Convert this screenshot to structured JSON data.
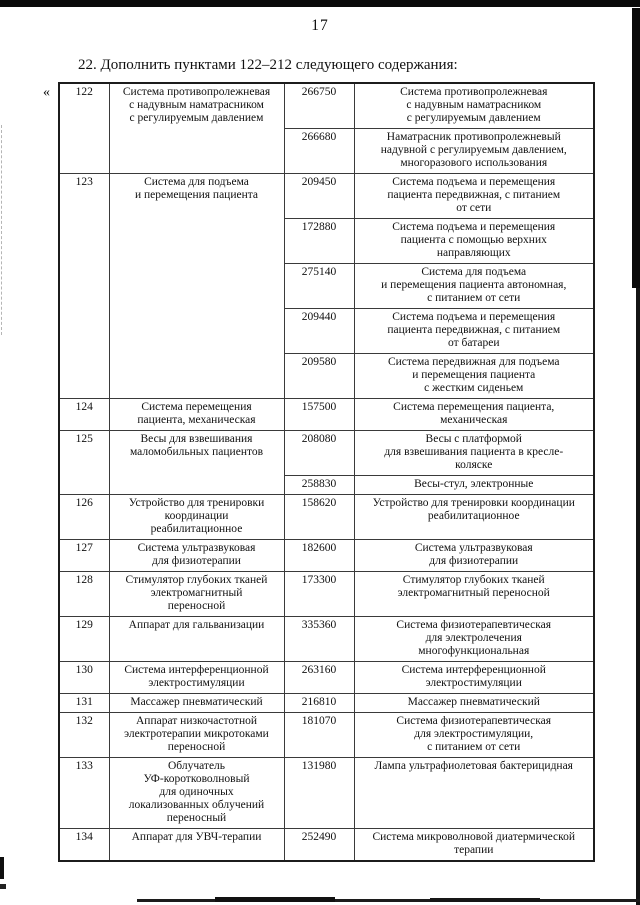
{
  "page": {
    "number": "17",
    "heading": "22. Дополнить пунктами 122–212 следующего содержания:",
    "open_quote": "«"
  },
  "table": {
    "rows": [
      {
        "num": "122",
        "name": "Система противопролежневая\nс надувным наматрасником\nс регулируемым давлением",
        "entries": [
          {
            "code": "266750",
            "desc": "Система противопролежневая\nс надувным наматрасником\nс регулируемым давлением"
          },
          {
            "code": "266680",
            "desc": "Наматрасник противопролежневый\nнадувной с регулируемым давлением,\nмногоразового использования"
          }
        ]
      },
      {
        "num": "123",
        "name": "Система для подъема\nи перемещения пациента",
        "entries": [
          {
            "code": "209450",
            "desc": "Система подъема и перемещения\nпациента передвижная, с питанием\nот сети"
          },
          {
            "code": "172880",
            "desc": "Система подъема и перемещения\nпациента с помощью верхних\nнаправляющих"
          },
          {
            "code": "275140",
            "desc": "Система для подъема\nи перемещения пациента автономная,\nс питанием от сети"
          },
          {
            "code": "209440",
            "desc": "Система подъема и перемещения\nпациента передвижная, с питанием\nот батареи"
          },
          {
            "code": "209580",
            "desc": "Система передвижная для подъема\nи перемещения пациента\nс жестким сиденьем"
          }
        ]
      },
      {
        "num": "124",
        "name": "Система перемещения\nпациента, механическая",
        "entries": [
          {
            "code": "157500",
            "desc": "Система перемещения пациента,\nмеханическая"
          }
        ]
      },
      {
        "num": "125",
        "name": "Весы для взвешивания\nмаломобильных пациентов",
        "entries": [
          {
            "code": "208080",
            "desc": "Весы с платформой\nдля взвешивания пациента в кресле-\nколяске"
          },
          {
            "code": "258830",
            "desc": "Весы-стул, электронные"
          }
        ]
      },
      {
        "num": "126",
        "name": "Устройство для тренировки\nкоординации\nреабилитационное",
        "entries": [
          {
            "code": "158620",
            "desc": "Устройство для тренировки координации\nреабилитационное"
          }
        ]
      },
      {
        "num": "127",
        "name": "Система ультразвуковая\nдля физиотерапии",
        "entries": [
          {
            "code": "182600",
            "desc": "Система ультразвуковая\nдля физиотерапии"
          }
        ]
      },
      {
        "num": "128",
        "name": "Стимулятор глубоких тканей\nэлектромагнитный\nпереносной",
        "entries": [
          {
            "code": "173300",
            "desc": "Стимулятор глубоких тканей\nэлектромагнитный переносной"
          }
        ]
      },
      {
        "num": "129",
        "name": "Аппарат для гальванизации",
        "entries": [
          {
            "code": "335360",
            "desc": "Система физиотерапевтическая\nдля электролечения\nмногофункциональная"
          }
        ]
      },
      {
        "num": "130",
        "name": "Система интерференционной\nэлектростимуляции",
        "entries": [
          {
            "code": "263160",
            "desc": "Система интерференционной\nэлектростимуляции"
          }
        ]
      },
      {
        "num": "131",
        "name": "Массажер пневматический",
        "entries": [
          {
            "code": "216810",
            "desc": "Массажер пневматический"
          }
        ]
      },
      {
        "num": "132",
        "name": "Аппарат низкочастотной\nэлектротерапии микротоками\nпереносной",
        "entries": [
          {
            "code": "181070",
            "desc": "Система физиотерапевтическая\nдля электростимуляции,\nс питанием от сети"
          }
        ]
      },
      {
        "num": "133",
        "name": "Облучатель\nУФ-коротковолновый\nдля одиночных\nлокализованных облучений\nпереносный",
        "entries": [
          {
            "code": "131980",
            "desc": "Лампа ультрафиолетовая бактерицидная"
          }
        ]
      },
      {
        "num": "134",
        "name": "Аппарат для УВЧ-терапии",
        "entries": [
          {
            "code": "252490",
            "desc": "Система микроволновой диатермической\nтерапии"
          }
        ]
      }
    ]
  }
}
